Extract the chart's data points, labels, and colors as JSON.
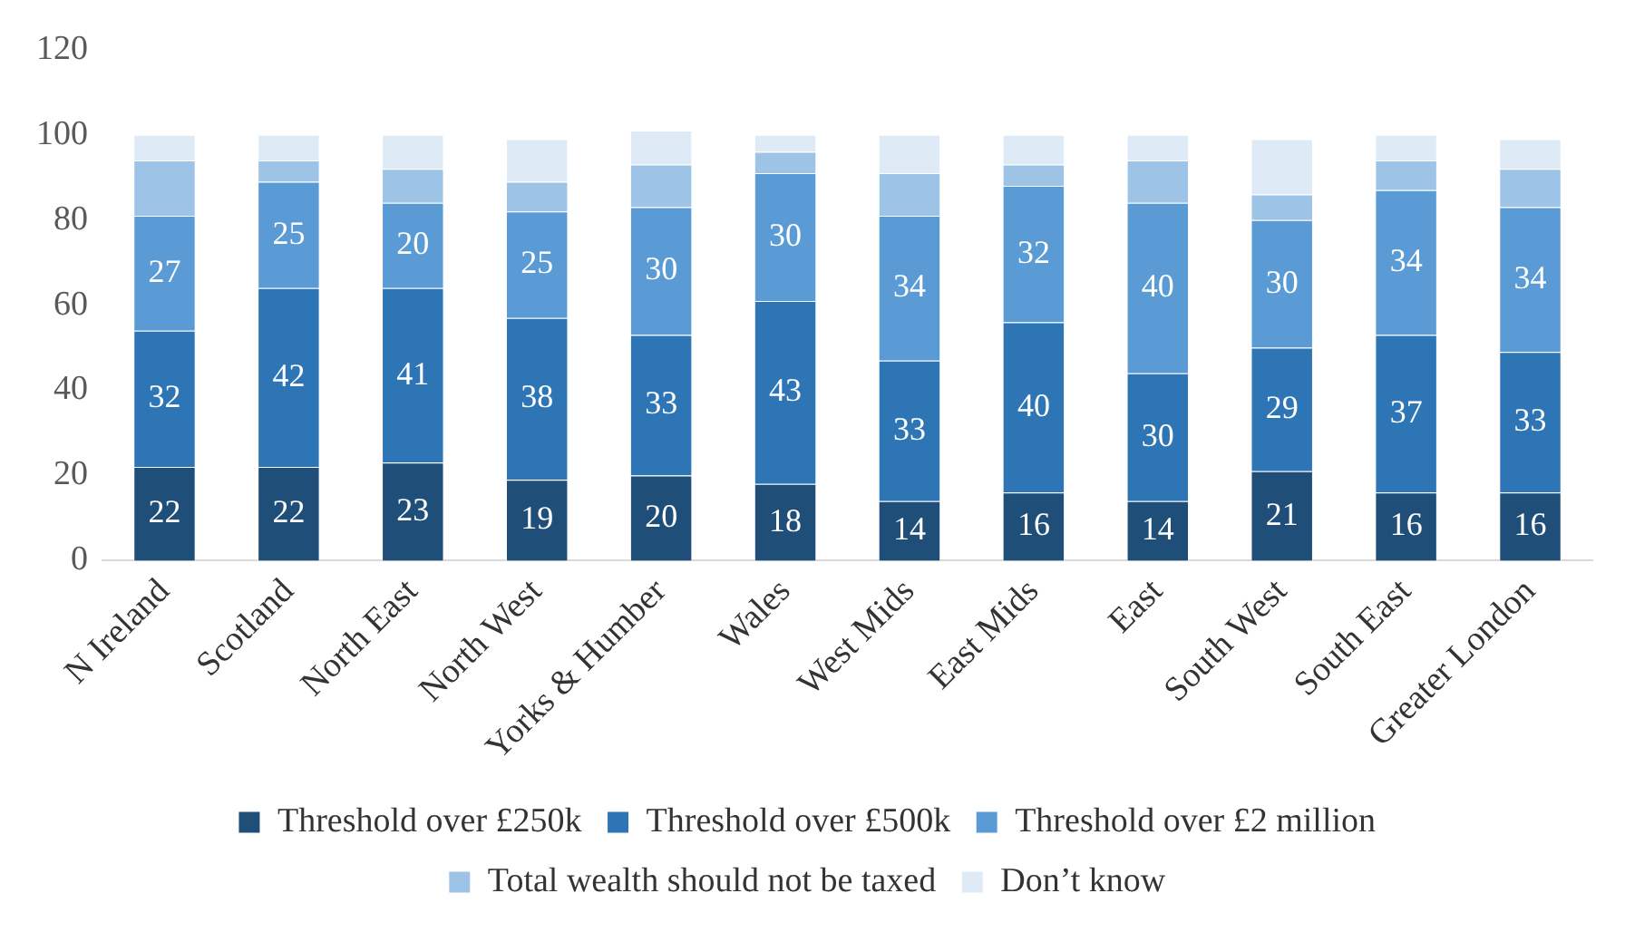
{
  "chart_data": {
    "type": "bar",
    "stacked": true,
    "grid": false,
    "legend": "bottom",
    "categories": [
      "N Ireland",
      "Scotland",
      "North East",
      "North West",
      "Yorks & Humber",
      "Wales",
      "West Mids",
      "East Mids",
      "East",
      "South West",
      "South East",
      "Greater London"
    ],
    "ylim": [
      0,
      120
    ],
    "yticks": [
      0,
      20,
      40,
      60,
      80,
      100,
      120
    ],
    "series": [
      {
        "name": "Threshold over £250k",
        "color": "#1f4e79",
        "values": [
          22,
          22,
          23,
          19,
          20,
          18,
          14,
          16,
          14,
          21,
          16,
          16
        ],
        "value_labels": [
          "22",
          "22",
          "23",
          "19",
          "20",
          "18",
          "14",
          "16",
          "14",
          "21",
          "16",
          "16"
        ]
      },
      {
        "name": "Threshold over £500k",
        "color": "#2e75b6",
        "values": [
          32,
          42,
          41,
          38,
          33,
          43,
          33,
          40,
          30,
          29,
          37,
          33
        ],
        "value_labels": [
          "32",
          "42",
          "41",
          "38",
          "33",
          "43",
          "33",
          "40",
          "30",
          "29",
          "37",
          "33"
        ]
      },
      {
        "name": "Threshold over £2 million",
        "color": "#5b9bd5",
        "values": [
          27,
          25,
          20,
          25,
          30,
          30,
          34,
          32,
          40,
          30,
          34,
          34
        ],
        "value_labels": [
          "27",
          "25",
          "20",
          "25",
          "30",
          "30",
          "34",
          "32",
          "40",
          "30",
          "34",
          "34"
        ]
      },
      {
        "name": "Total wealth should not be taxed",
        "color": "#9dc3e6",
        "values": [
          13,
          5,
          8,
          7,
          10,
          5,
          10,
          5,
          10,
          6,
          7,
          9
        ]
      },
      {
        "name": "Don’t know",
        "color": "#deebf7",
        "values": [
          6,
          6,
          8,
          10,
          8,
          4,
          9,
          7,
          6,
          13,
          6,
          7
        ]
      }
    ]
  }
}
